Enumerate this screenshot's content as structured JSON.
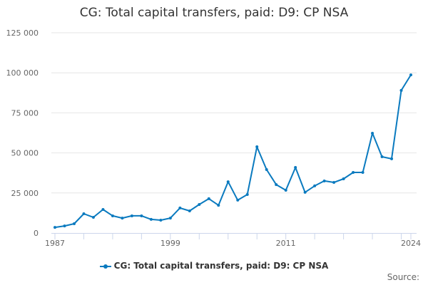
{
  "chart_data": {
    "type": "line",
    "title": "CG: Total capital transfers, paid: D9: CP NSA",
    "xlabel": "",
    "ylabel": "",
    "ylim": [
      0,
      125000
    ],
    "yticks": [
      0,
      25000,
      50000,
      75000,
      100000,
      125000
    ],
    "ytick_labels": [
      "0",
      "25 000",
      "50 000",
      "75 000",
      "100 000",
      "125 000"
    ],
    "xtick_labels": [
      "1987",
      "1999",
      "2011",
      "2024"
    ],
    "grid": true,
    "legend_position": "bottom",
    "x": [
      1987,
      1988,
      1989,
      1990,
      1991,
      1992,
      1993,
      1994,
      1995,
      1996,
      1997,
      1998,
      1999,
      2000,
      2001,
      2002,
      2003,
      2004,
      2005,
      2006,
      2007,
      2008,
      2009,
      2010,
      2011,
      2012,
      2013,
      2014,
      2015,
      2016,
      2017,
      2018,
      2019,
      2020,
      2021,
      2022,
      2023,
      2024
    ],
    "series": [
      {
        "name": "CG: Total capital transfers, paid: D9: CP NSA",
        "color": "#0a7abf",
        "values": [
          3500,
          4400,
          5800,
          12000,
          9800,
          14700,
          10700,
          9300,
          10700,
          10700,
          8500,
          8000,
          9300,
          15600,
          13800,
          17800,
          21400,
          17300,
          32000,
          20500,
          24000,
          53800,
          39600,
          30200,
          26700,
          40900,
          25400,
          29400,
          32500,
          31600,
          33800,
          37800,
          37800,
          62300,
          47600,
          46300,
          89000,
          98700
        ]
      }
    ]
  },
  "legend": {
    "label": "CG: Total capital transfers, paid: D9: CP NSA"
  },
  "source": {
    "label": "Source:"
  }
}
